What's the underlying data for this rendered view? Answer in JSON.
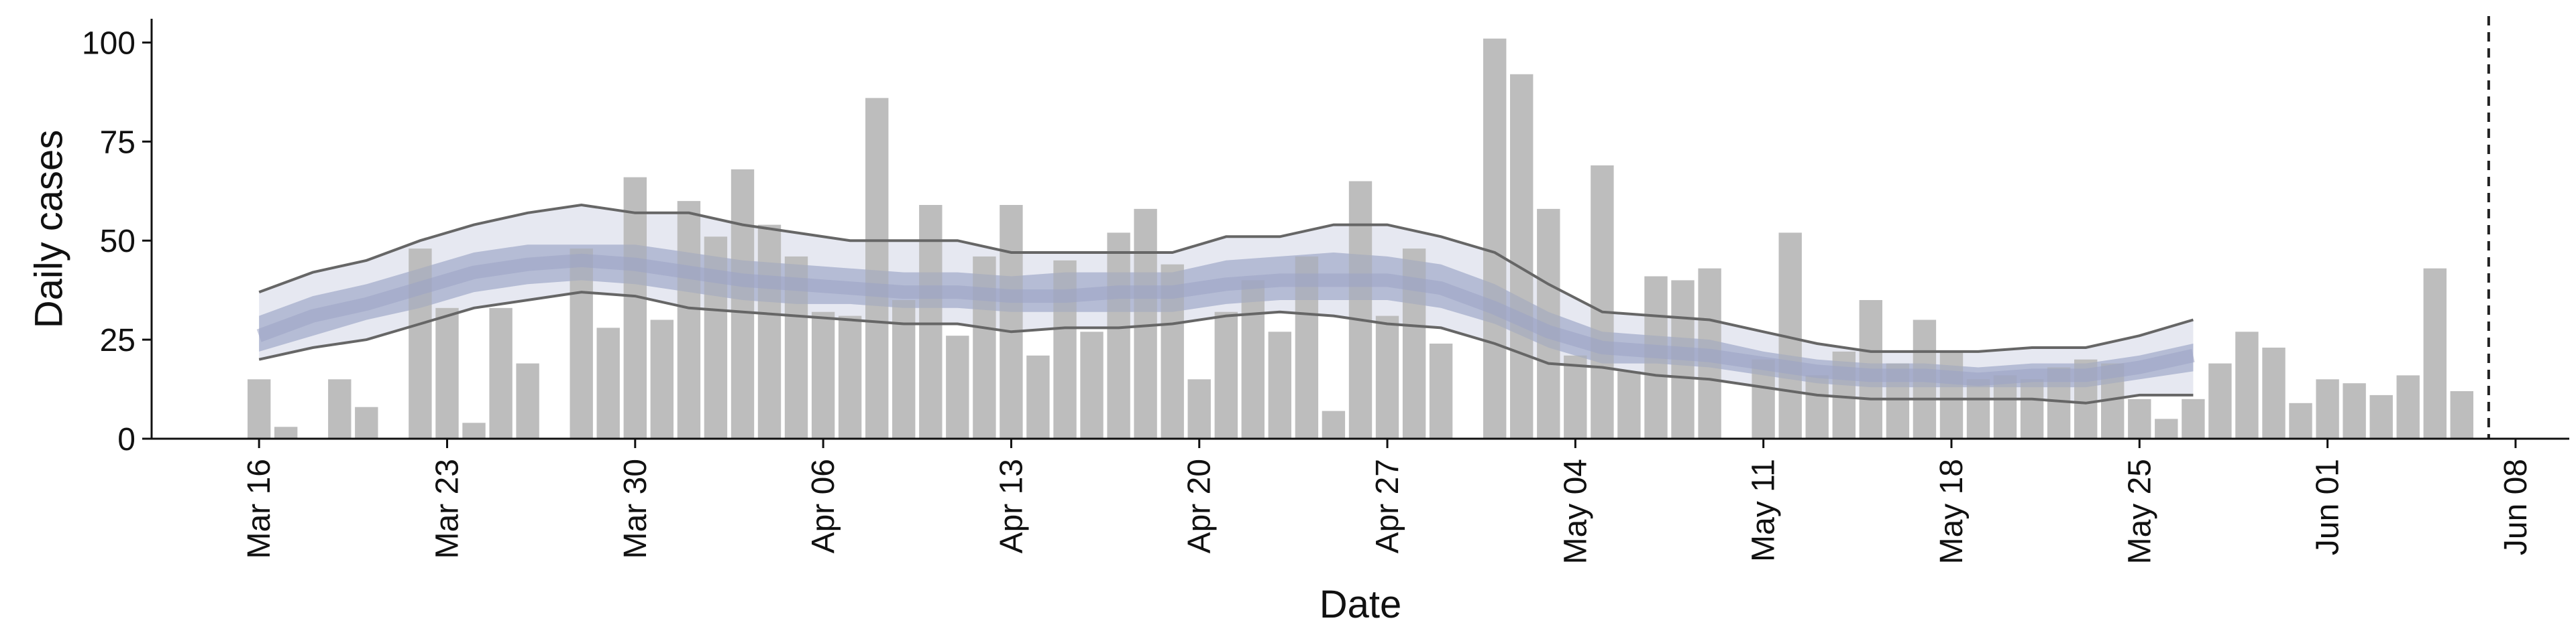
{
  "chart_data": {
    "type": "bar",
    "xlabel": "Date",
    "ylabel": "Daily cases",
    "ylim": [
      0,
      106
    ],
    "yticks": [
      0,
      25,
      50,
      75,
      100
    ],
    "xlim": [
      "2020-03-12",
      "2020-06-10"
    ],
    "xticks": [
      {
        "date": "2020-03-16",
        "label": "Mar 16"
      },
      {
        "date": "2020-03-23",
        "label": "Mar 23"
      },
      {
        "date": "2020-03-30",
        "label": "Mar 30"
      },
      {
        "date": "2020-04-06",
        "label": "Apr 06"
      },
      {
        "date": "2020-04-13",
        "label": "Apr 13"
      },
      {
        "date": "2020-04-20",
        "label": "Apr 20"
      },
      {
        "date": "2020-04-27",
        "label": "Apr 27"
      },
      {
        "date": "2020-05-04",
        "label": "May 04"
      },
      {
        "date": "2020-05-11",
        "label": "May 11"
      },
      {
        "date": "2020-05-18",
        "label": "May 18"
      },
      {
        "date": "2020-05-25",
        "label": "May 25"
      },
      {
        "date": "2020-06-01",
        "label": "Jun 01"
      },
      {
        "date": "2020-06-08",
        "label": "Jun 08"
      }
    ],
    "grid": false,
    "legend": "none",
    "colors": {
      "bars": "#bdbdbd",
      "outer_band": "#e6e8f1",
      "inner_band": "#bfc6da",
      "bound_lines": "#666666",
      "vline": "#222222",
      "axis": "#111111"
    },
    "bars": {
      "dates": [
        "2020-03-16",
        "2020-03-17",
        "2020-03-18",
        "2020-03-19",
        "2020-03-20",
        "2020-03-21",
        "2020-03-22",
        "2020-03-23",
        "2020-03-24",
        "2020-03-25",
        "2020-03-26",
        "2020-03-27",
        "2020-03-28",
        "2020-03-29",
        "2020-03-30",
        "2020-03-31",
        "2020-04-01",
        "2020-04-02",
        "2020-04-03",
        "2020-04-04",
        "2020-04-05",
        "2020-04-06",
        "2020-04-07",
        "2020-04-08",
        "2020-04-09",
        "2020-04-10",
        "2020-04-11",
        "2020-04-12",
        "2020-04-13",
        "2020-04-14",
        "2020-04-15",
        "2020-04-16",
        "2020-04-17",
        "2020-04-18",
        "2020-04-19",
        "2020-04-20",
        "2020-04-21",
        "2020-04-22",
        "2020-04-23",
        "2020-04-24",
        "2020-04-25",
        "2020-04-26",
        "2020-04-27",
        "2020-04-28",
        "2020-04-29",
        "2020-04-30",
        "2020-05-01",
        "2020-05-02",
        "2020-05-03",
        "2020-05-04",
        "2020-05-05",
        "2020-05-06",
        "2020-05-07",
        "2020-05-08",
        "2020-05-09",
        "2020-05-10",
        "2020-05-11",
        "2020-05-12",
        "2020-05-13",
        "2020-05-14",
        "2020-05-15",
        "2020-05-16",
        "2020-05-17",
        "2020-05-18",
        "2020-05-19",
        "2020-05-20",
        "2020-05-21",
        "2020-05-22",
        "2020-05-23",
        "2020-05-24",
        "2020-05-25",
        "2020-05-26",
        "2020-05-27",
        "2020-05-28",
        "2020-05-29",
        "2020-05-30",
        "2020-05-31",
        "2020-06-01",
        "2020-06-02",
        "2020-06-03",
        "2020-06-04",
        "2020-06-05",
        "2020-06-06"
      ],
      "values": [
        15,
        3,
        0,
        15,
        8,
        0,
        48,
        33,
        4,
        33,
        19,
        0,
        48,
        28,
        66,
        30,
        60,
        51,
        68,
        54,
        46,
        32,
        31,
        86,
        35,
        59,
        26,
        46,
        59,
        21,
        45,
        27,
        52,
        58,
        44,
        15,
        32,
        40,
        27,
        46,
        7,
        65,
        31,
        48,
        24,
        0,
        101,
        92,
        58,
        21,
        69,
        17,
        41,
        40,
        43,
        0,
        20,
        52,
        16,
        22,
        35,
        19,
        30,
        22,
        15,
        16,
        15,
        18,
        20,
        19,
        10,
        5,
        10,
        19,
        27,
        23,
        9,
        15,
        14,
        11,
        16,
        43,
        12
      ]
    },
    "band": {
      "dates": [
        "2020-03-16",
        "2020-03-18",
        "2020-03-20",
        "2020-03-22",
        "2020-03-24",
        "2020-03-26",
        "2020-03-28",
        "2020-03-30",
        "2020-04-01",
        "2020-04-03",
        "2020-04-05",
        "2020-04-07",
        "2020-04-09",
        "2020-04-11",
        "2020-04-13",
        "2020-04-15",
        "2020-04-17",
        "2020-04-19",
        "2020-04-21",
        "2020-04-23",
        "2020-04-25",
        "2020-04-27",
        "2020-04-29",
        "2020-05-01",
        "2020-05-03",
        "2020-05-05",
        "2020-05-07",
        "2020-05-09",
        "2020-05-11",
        "2020-05-13",
        "2020-05-15",
        "2020-05-17",
        "2020-05-19",
        "2020-05-21",
        "2020-05-23",
        "2020-05-25",
        "2020-05-27"
      ],
      "upper": [
        37,
        42,
        45,
        50,
        54,
        57,
        59,
        57,
        57,
        54,
        52,
        50,
        50,
        50,
        47,
        47,
        47,
        47,
        51,
        51,
        54,
        54,
        51,
        47,
        39,
        32,
        31,
        30,
        27,
        24,
        22,
        22,
        22,
        23,
        23,
        26,
        30
      ],
      "upper_mid": [
        31,
        36,
        39,
        43,
        47,
        49,
        49,
        49,
        47,
        45,
        44,
        43,
        42,
        42,
        41,
        42,
        42,
        42,
        45,
        46,
        47,
        46,
        44,
        39,
        32,
        27,
        26,
        25,
        22,
        20,
        19,
        19,
        18,
        19,
        19,
        21,
        24
      ],
      "median": [
        26,
        31,
        34,
        38,
        42,
        44,
        45,
        44,
        42,
        40,
        39,
        38,
        37,
        37,
        36,
        36,
        37,
        37,
        39,
        40,
        40,
        40,
        38,
        33,
        27,
        23,
        22,
        21,
        19,
        17,
        16,
        16,
        15,
        16,
        16,
        18,
        21
      ],
      "lower_mid": [
        22,
        26,
        30,
        33,
        37,
        39,
        40,
        39,
        37,
        35,
        34,
        34,
        33,
        33,
        32,
        32,
        32,
        32,
        34,
        35,
        35,
        35,
        33,
        29,
        23,
        19,
        19,
        18,
        16,
        14,
        13,
        13,
        13,
        13,
        13,
        15,
        17
      ],
      "lower": [
        20,
        23,
        25,
        29,
        33,
        35,
        37,
        36,
        33,
        32,
        31,
        30,
        29,
        29,
        27,
        28,
        28,
        29,
        31,
        32,
        31,
        29,
        28,
        24,
        19,
        18,
        16,
        15,
        13,
        11,
        10,
        10,
        10,
        10,
        9,
        11,
        11
      ]
    },
    "vline_date": "2020-06-07"
  }
}
